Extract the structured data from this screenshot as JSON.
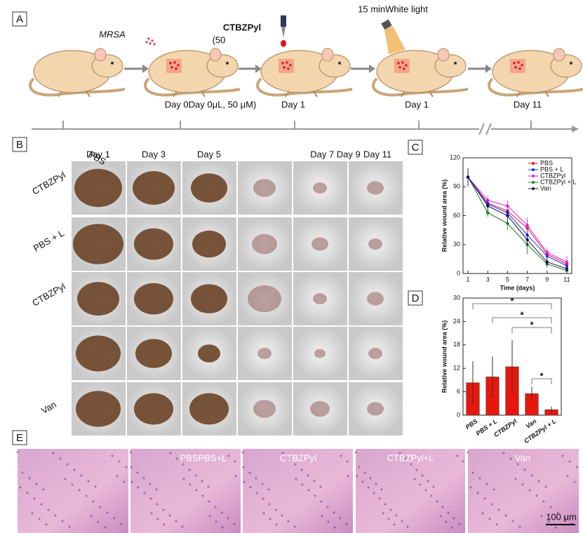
{
  "panel_a": {
    "label": "A",
    "pathogen": "MRSA",
    "agent": "CTBZPyl",
    "dose": "(50",
    "light": "15 minWhite light",
    "timepoints": [
      "Day 0Day 0μL, 50 μM)",
      "Day 1",
      "Day 1",
      "Day 11"
    ]
  },
  "panel_b": {
    "label": "B",
    "columns": [
      "Day 1",
      "Day 3",
      "Day 5",
      "Day 7 Day 9",
      "Day 11"
    ],
    "overlay": "PBS",
    "rows": [
      "CTBZPyl",
      "PBS + L",
      "CTBZPyl",
      "Van"
    ]
  },
  "chart_data": [
    {
      "type": "line",
      "label": "C",
      "x": [
        1,
        3,
        5,
        7,
        9,
        11
      ],
      "xlim": [
        0.5,
        11.5
      ],
      "xticks": [
        1,
        3,
        5,
        7,
        9,
        11
      ],
      "ylim": [
        0,
        120
      ],
      "yticks": [
        0,
        30,
        60,
        90,
        120
      ],
      "xlabel": "Time (days)",
      "ylabel": "Relative wound area (%)",
      "legend": "upper right",
      "series": [
        {
          "name": "PBS",
          "color": "#e8141c",
          "values": [
            100,
            73,
            65,
            47,
            20,
            10
          ],
          "errors": [
            9,
            5,
            6,
            8,
            4,
            4
          ]
        },
        {
          "name": "PBS + L",
          "color": "#1a2ee6",
          "values": [
            100,
            72,
            63,
            40,
            18,
            8
          ],
          "errors": [
            8,
            5,
            6,
            7,
            4,
            4
          ]
        },
        {
          "name": "CTBZPyl",
          "color": "#e020e0",
          "values": [
            100,
            76,
            70,
            50,
            22,
            12
          ],
          "errors": [
            10,
            5,
            6,
            8,
            5,
            6
          ]
        },
        {
          "name": "CTBZPyl + L",
          "color": "#1b7a1b",
          "values": [
            100,
            63,
            52,
            30,
            10,
            3
          ],
          "errors": [
            8,
            4,
            7,
            10,
            4,
            3
          ]
        },
        {
          "name": "Van",
          "color": "#12125e",
          "values": [
            100,
            70,
            60,
            35,
            12,
            5
          ],
          "errors": [
            9,
            5,
            6,
            7,
            4,
            3
          ]
        }
      ]
    },
    {
      "type": "bar",
      "label": "D",
      "categories": [
        "PBS",
        "PBS + L",
        "CTBZPyl",
        "Van",
        "CTBZPyl + L"
      ],
      "values": [
        8.3,
        9.8,
        12.4,
        5.5,
        1.4
      ],
      "errors": [
        5.5,
        5.2,
        6.8,
        1.8,
        0.8
      ],
      "color": "#e8170d",
      "ylim": [
        0,
        30
      ],
      "yticks": [
        0,
        6,
        12,
        18,
        24,
        30
      ],
      "ylabel": "Relative wound area (%)",
      "annotations": [
        "*",
        "*",
        "*",
        "*"
      ]
    }
  ],
  "panel_e": {
    "label": "E",
    "images": [
      "PBSPBS+L",
      "CTBZPyl",
      "CTBZPyl+L",
      "Van"
    ],
    "scale_bar": "100 μm"
  }
}
